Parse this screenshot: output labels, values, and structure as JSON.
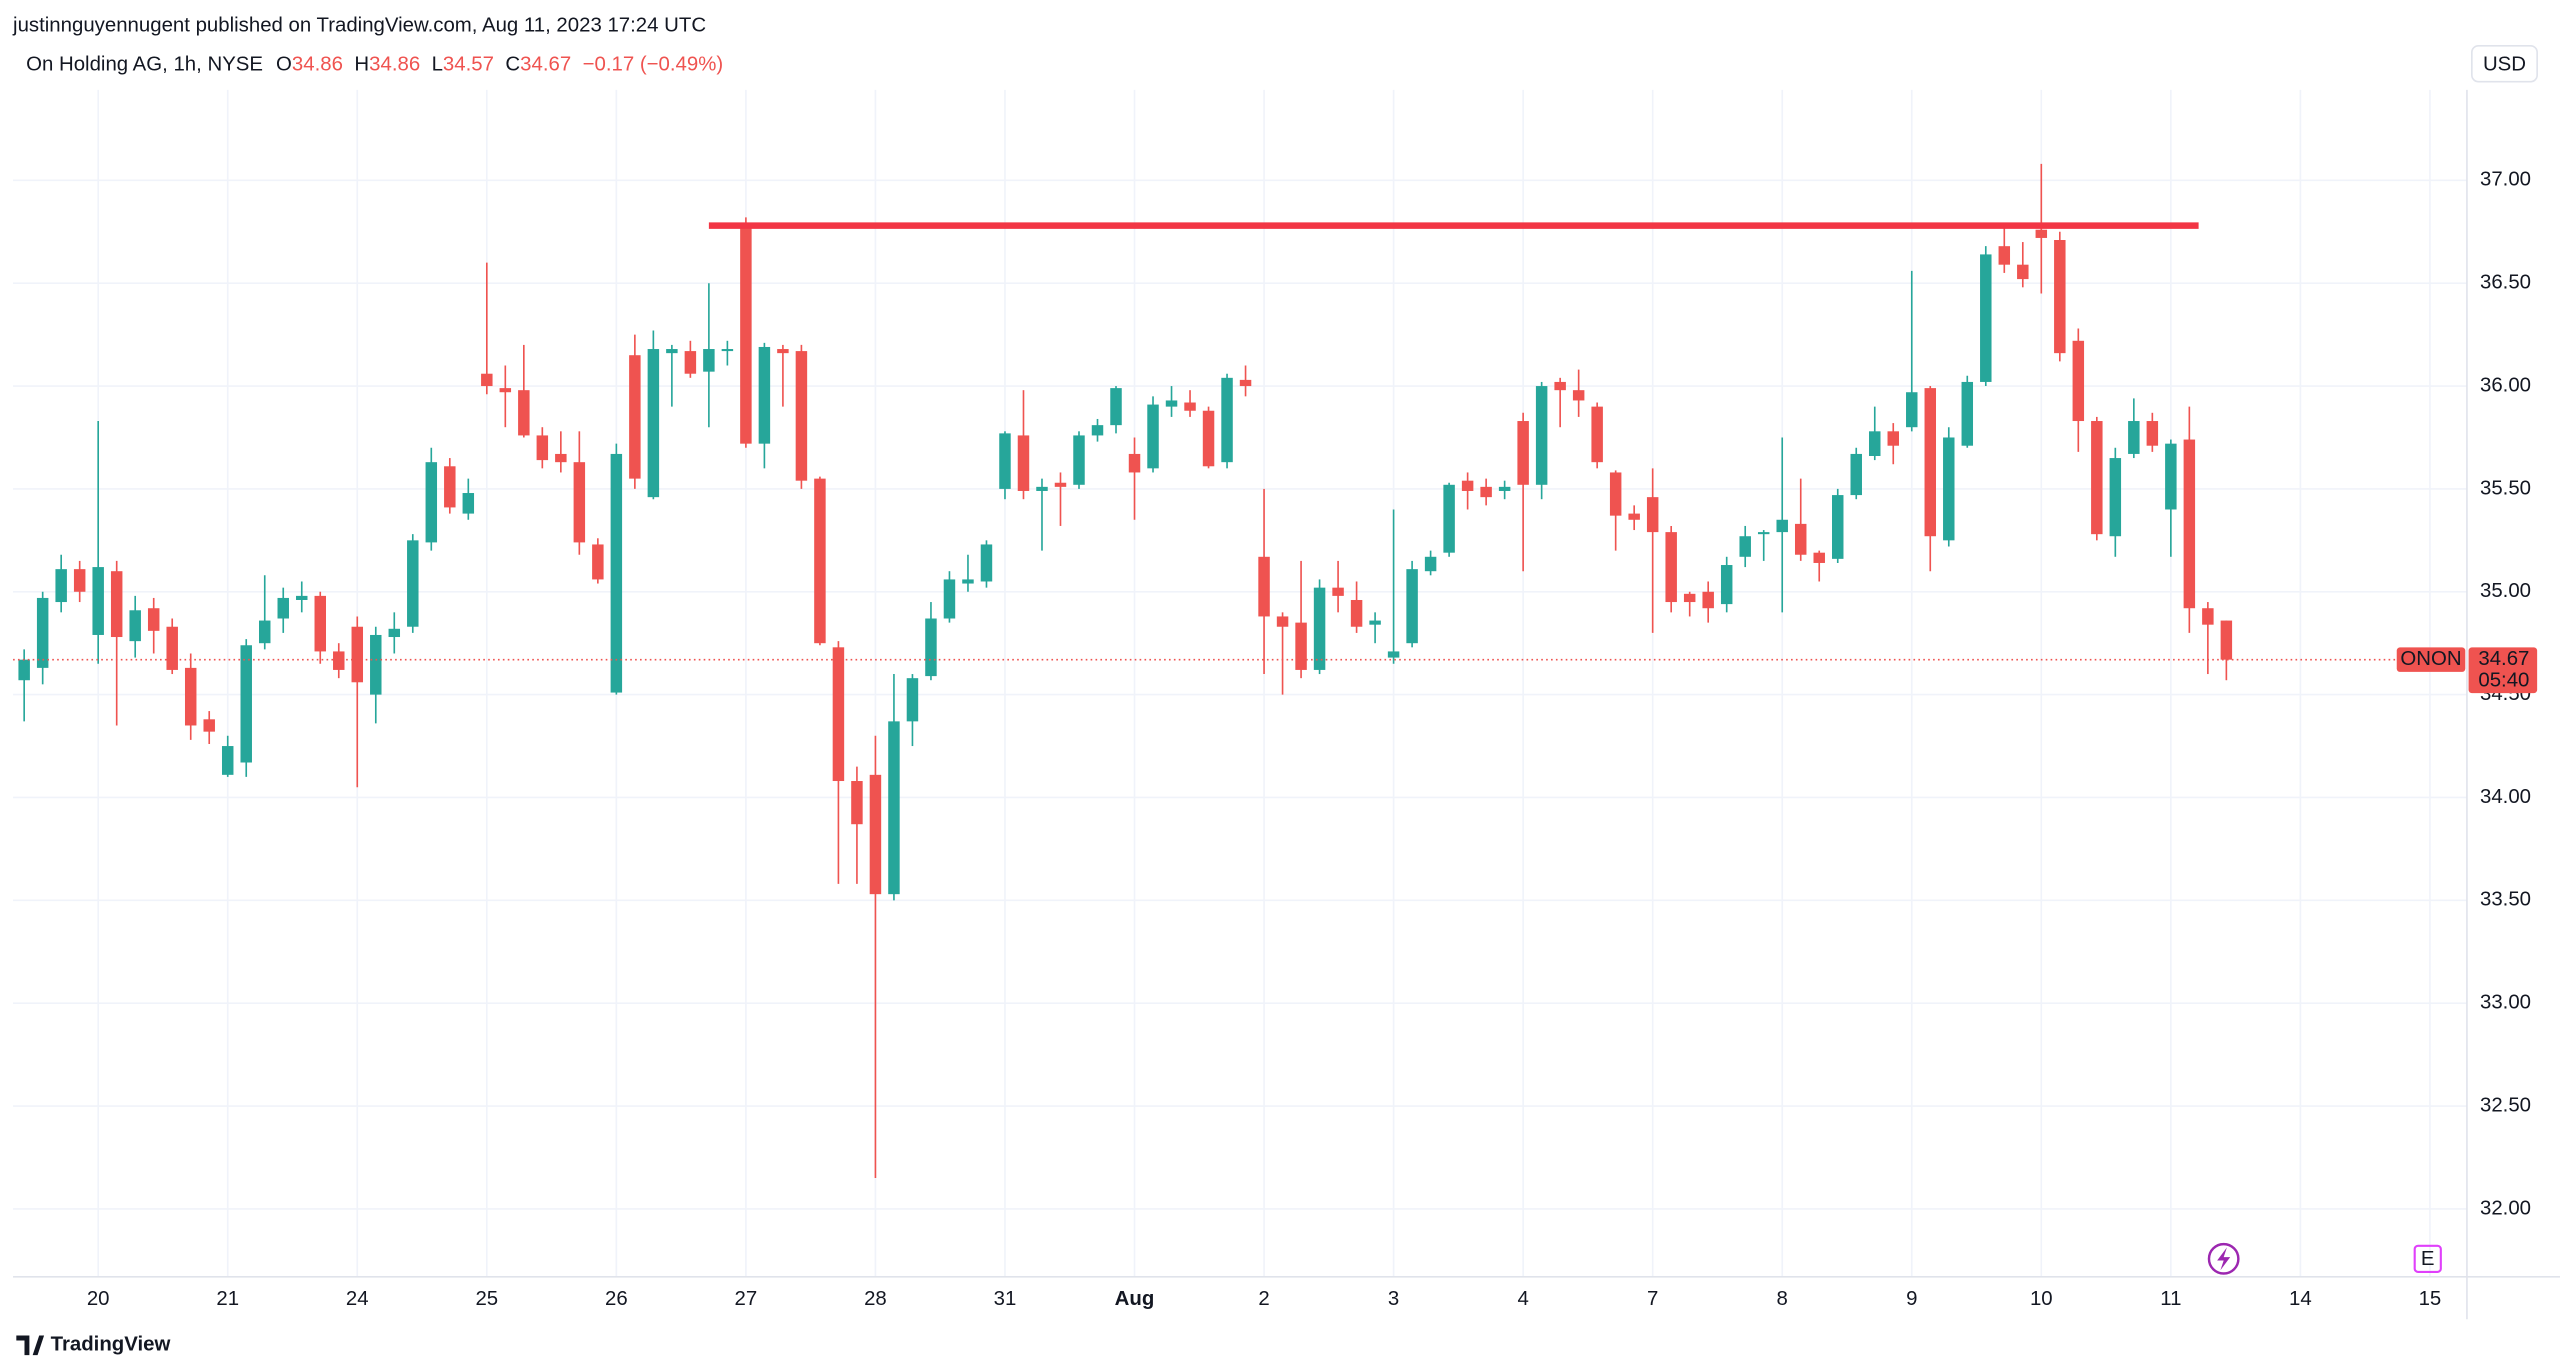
{
  "chart_data": {
    "type": "candlestick",
    "publisher": "justinnguyennugent published on TradingView.com, Aug 11, 2023 17:24 UTC",
    "title": "On Holding AG, 1h, NYSE",
    "ohlc_letters": [
      "O",
      "H",
      "L",
      "C"
    ],
    "change": "−0.17 (−0.49%)",
    "symbol": "ONON",
    "countdown": "05:40",
    "currency": "USD",
    "brand": "TradingView",
    "events_icon": "E",
    "up_color": "#26a69a",
    "down_color": "#ef5350",
    "open": [
      34.57,
      34.63,
      34.95,
      35.11,
      34.79,
      35.1,
      34.76,
      34.92,
      34.83,
      34.63,
      34.38,
      34.11,
      34.17,
      34.75,
      34.87,
      34.96,
      34.98,
      34.71,
      34.83,
      34.5,
      34.78,
      34.83,
      35.24,
      35.61,
      35.38,
      36.06,
      35.99,
      35.98,
      35.76,
      35.67,
      35.63,
      35.23,
      34.51,
      36.15,
      35.46,
      36.16,
      36.17,
      36.07,
      36.17,
      36.78,
      35.72,
      36.18,
      36.17,
      35.55,
      34.73,
      34.08,
      34.11,
      33.53,
      34.37,
      34.59,
      34.87,
      35.04,
      35.05,
      35.5,
      35.76,
      35.49,
      35.53,
      35.52,
      35.76,
      35.81,
      35.67,
      35.6,
      35.9,
      35.92,
      35.88,
      35.63,
      36.03,
      35.17,
      34.88,
      34.85,
      34.62,
      35.02,
      34.96,
      34.84,
      34.68,
      34.75,
      35.1,
      35.19,
      35.54,
      35.51,
      35.49,
      35.83,
      35.52,
      36.02,
      35.98,
      35.9,
      35.58,
      35.38,
      35.46,
      35.29,
      34.99,
      35.0,
      34.94,
      35.17,
      35.28,
      35.29,
      35.33,
      35.19,
      35.16,
      35.47,
      35.66,
      35.78,
      35.8,
      35.99,
      35.25,
      35.71,
      36.02,
      36.68,
      36.59,
      36.76,
      36.71,
      36.22,
      35.83,
      35.27,
      35.67,
      35.83,
      35.4,
      35.74,
      34.92,
      34.86
    ],
    "high": [
      34.72,
      35.0,
      35.18,
      35.15,
      35.83,
      35.15,
      34.98,
      34.97,
      34.87,
      34.7,
      34.42,
      34.3,
      34.77,
      35.08,
      35.02,
      35.05,
      35.0,
      34.75,
      34.88,
      34.83,
      34.9,
      35.28,
      35.7,
      35.65,
      35.55,
      36.6,
      36.1,
      36.2,
      35.8,
      35.78,
      35.78,
      35.26,
      35.72,
      36.25,
      36.27,
      36.2,
      36.22,
      36.5,
      36.22,
      36.82,
      36.21,
      36.2,
      36.2,
      35.56,
      34.76,
      34.15,
      34.3,
      34.6,
      34.6,
      34.95,
      35.1,
      35.18,
      35.25,
      35.78,
      35.98,
      35.55,
      35.58,
      35.78,
      35.84,
      36.0,
      35.75,
      35.95,
      36.0,
      35.98,
      35.9,
      36.06,
      36.1,
      35.5,
      34.9,
      35.15,
      35.06,
      35.15,
      35.05,
      34.9,
      35.4,
      35.15,
      35.2,
      35.53,
      35.58,
      35.55,
      35.54,
      35.87,
      36.02,
      36.04,
      36.08,
      35.92,
      35.59,
      35.42,
      35.6,
      35.32,
      35.0,
      35.05,
      35.17,
      35.32,
      35.3,
      35.75,
      35.55,
      35.2,
      35.5,
      35.7,
      35.9,
      35.82,
      36.56,
      36.0,
      35.8,
      36.05,
      36.68,
      36.78,
      36.7,
      37.08,
      36.75,
      36.28,
      35.85,
      35.7,
      35.94,
      35.87,
      35.74,
      35.9,
      34.95,
      34.86
    ],
    "low": [
      34.37,
      34.55,
      34.9,
      34.95,
      34.65,
      34.35,
      34.68,
      34.7,
      34.6,
      34.28,
      34.26,
      34.1,
      34.1,
      34.72,
      34.8,
      34.9,
      34.65,
      34.58,
      34.05,
      34.36,
      34.7,
      34.8,
      35.2,
      35.38,
      35.35,
      35.96,
      35.8,
      35.75,
      35.6,
      35.58,
      35.18,
      35.04,
      34.5,
      35.5,
      35.45,
      35.9,
      36.04,
      35.8,
      36.1,
      35.7,
      35.6,
      35.9,
      35.5,
      34.74,
      33.58,
      33.58,
      32.15,
      33.5,
      34.25,
      34.57,
      34.85,
      35.0,
      35.02,
      35.45,
      35.45,
      35.2,
      35.32,
      35.5,
      35.73,
      35.77,
      35.35,
      35.58,
      35.85,
      35.85,
      35.6,
      35.6,
      35.95,
      34.6,
      34.5,
      34.58,
      34.6,
      34.9,
      34.8,
      34.75,
      34.65,
      34.73,
      35.08,
      35.17,
      35.4,
      35.42,
      35.45,
      35.1,
      35.45,
      35.8,
      35.85,
      35.6,
      35.2,
      35.3,
      34.8,
      34.9,
      34.88,
      34.85,
      34.9,
      35.12,
      35.15,
      34.9,
      35.15,
      35.05,
      35.14,
      35.45,
      35.64,
      35.62,
      35.78,
      35.1,
      35.22,
      35.7,
      36.0,
      36.55,
      36.48,
      36.45,
      36.12,
      35.68,
      35.25,
      35.17,
      35.65,
      35.68,
      35.17,
      34.8,
      34.6,
      34.57
    ],
    "close": [
      34.67,
      34.97,
      35.11,
      35.0,
      35.12,
      34.78,
      34.91,
      34.81,
      34.62,
      34.35,
      34.32,
      34.25,
      34.74,
      34.86,
      34.97,
      34.98,
      34.71,
      34.62,
      34.56,
      34.79,
      34.82,
      35.25,
      35.63,
      35.41,
      35.48,
      36.0,
      35.97,
      35.76,
      35.64,
      35.63,
      35.24,
      35.06,
      35.67,
      35.55,
      36.18,
      36.18,
      36.06,
      36.18,
      36.18,
      35.72,
      36.19,
      36.16,
      35.54,
      34.75,
      34.08,
      33.87,
      33.53,
      34.37,
      34.58,
      34.87,
      35.06,
      35.06,
      35.23,
      35.77,
      35.49,
      35.51,
      35.51,
      35.76,
      35.81,
      35.99,
      35.58,
      35.91,
      35.93,
      35.88,
      35.61,
      36.04,
      36.0,
      34.88,
      34.83,
      34.62,
      35.02,
      34.98,
      34.83,
      34.86,
      34.71,
      35.11,
      35.17,
      35.52,
      35.49,
      35.46,
      35.51,
      35.52,
      36.0,
      35.98,
      35.93,
      35.63,
      35.37,
      35.35,
      35.29,
      34.95,
      34.95,
      34.92,
      35.13,
      35.27,
      35.29,
      35.35,
      35.18,
      35.14,
      35.47,
      35.67,
      35.78,
      35.71,
      35.97,
      35.27,
      35.75,
      36.02,
      36.64,
      36.59,
      36.52,
      36.72,
      36.16,
      35.83,
      35.28,
      35.65,
      35.83,
      35.71,
      35.72,
      34.92,
      34.84,
      34.67
    ],
    "xlim": [
      -0.6,
      132
    ],
    "xticks": [
      {
        "value": 4,
        "label": "20"
      },
      {
        "value": 11,
        "label": "21"
      },
      {
        "value": 18,
        "label": "24"
      },
      {
        "value": 25,
        "label": "25"
      },
      {
        "value": 32,
        "label": "26"
      },
      {
        "value": 39,
        "label": "27"
      },
      {
        "value": 46,
        "label": "28"
      },
      {
        "value": 53,
        "label": "31"
      },
      {
        "value": 60,
        "label": "Aug"
      },
      {
        "value": 67,
        "label": "2"
      },
      {
        "value": 74,
        "label": "3"
      },
      {
        "value": 81,
        "label": "4"
      },
      {
        "value": 88,
        "label": "7"
      },
      {
        "value": 95,
        "label": "8"
      },
      {
        "value": 102,
        "label": "9"
      },
      {
        "value": 109,
        "label": "10"
      },
      {
        "value": 116,
        "label": "11"
      },
      {
        "value": 123,
        "label": "14"
      },
      {
        "value": 130,
        "label": "15"
      }
    ],
    "ylim": [
      31.67,
      37.44
    ],
    "yticks": [
      {
        "value": 32,
        "label": "32.00"
      },
      {
        "value": 32.5,
        "label": "32.50"
      },
      {
        "value": 33,
        "label": "33.00"
      },
      {
        "value": 33.5,
        "label": "33.50"
      },
      {
        "value": 34,
        "label": "34.00"
      },
      {
        "value": 34.5,
        "label": "34.50"
      },
      {
        "value": 35,
        "label": "35.00"
      },
      {
        "value": 35.5,
        "label": "35.50"
      },
      {
        "value": 36,
        "label": "36.00"
      },
      {
        "value": 36.5,
        "label": "36.50"
      },
      {
        "value": 37,
        "label": "37.00"
      }
    ],
    "grid": true,
    "resistance": {
      "value": 36.78,
      "from": 37,
      "to": 117.5,
      "color": "#f23645"
    }
  }
}
